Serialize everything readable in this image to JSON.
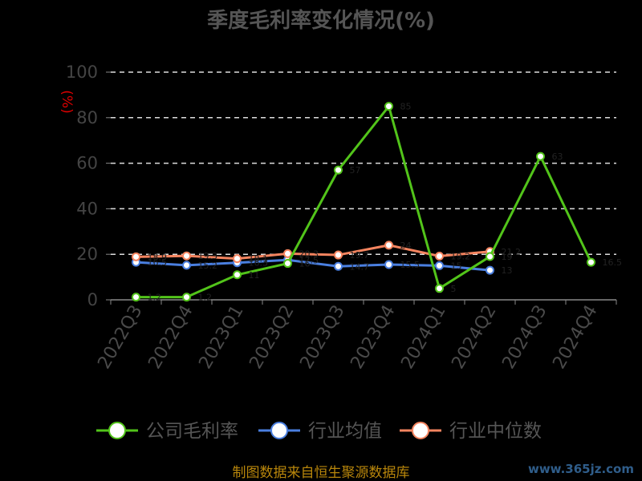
{
  "chart_data": {
    "type": "line",
    "title": "季度毛利率变化情况(%)",
    "ylabel": "(%)",
    "ylim": [
      0,
      100
    ],
    "yticks": [
      0,
      20,
      40,
      60,
      80,
      100
    ],
    "grid": true,
    "legend_position": "bottom",
    "categories": [
      "2022Q3",
      "2022Q4",
      "2023Q1",
      "2023Q2",
      "2023Q3",
      "2023Q4",
      "2024Q1",
      "2024Q2",
      "2024Q3",
      "2024Q4"
    ],
    "series": [
      {
        "name": "公司毛利率",
        "color": "#52c41a",
        "values": [
          1.2,
          1.2,
          11,
          16,
          57,
          85,
          5,
          19,
          63,
          16.5
        ],
        "labels": [
          "1.2",
          "1.2",
          "11",
          "16",
          "57",
          "85",
          "5",
          "19",
          "63",
          "16.5"
        ]
      },
      {
        "name": "行业均值",
        "color": "#4a7fe0",
        "values": [
          16.5,
          15.2,
          16.3,
          17.5,
          14.7,
          15.5,
          15,
          13,
          null,
          null
        ],
        "labels": [
          "16.5",
          "15.2",
          "16.3",
          "17.5",
          "14.7",
          "15.5",
          "15",
          "13",
          "",
          ""
        ]
      },
      {
        "name": "行业中位数",
        "color": "#f4845f",
        "values": [
          18.9,
          19.3,
          18.1,
          20.3,
          19.7,
          24,
          19.2,
          21.2,
          null,
          null
        ],
        "labels": [
          "18.9",
          "19.3",
          "18.1",
          "20.3",
          "19.7",
          "24",
          "19.2",
          "21.2",
          "",
          ""
        ]
      }
    ]
  },
  "footer": {
    "source": "制图数据来自恒生聚源数据库",
    "watermark": "www.365jz.com"
  }
}
